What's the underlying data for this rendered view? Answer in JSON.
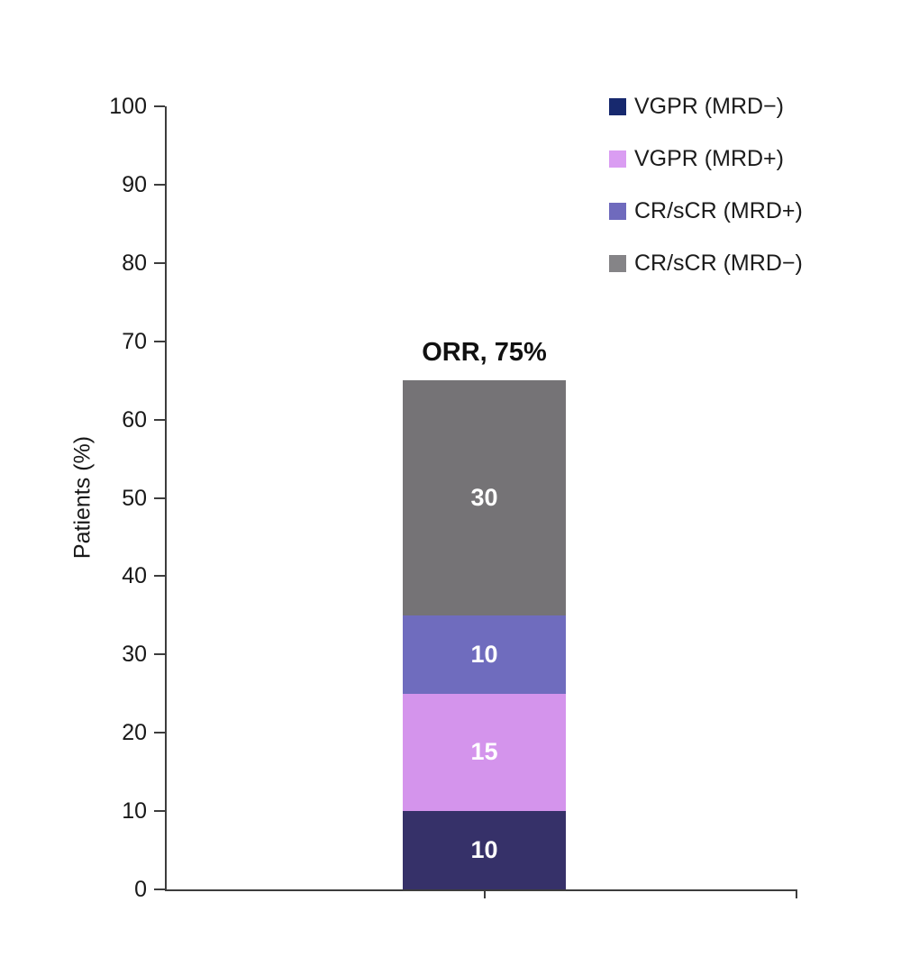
{
  "chart_data": {
    "type": "bar",
    "stacked": true,
    "title": "",
    "ylabel": "Patients (%)",
    "xlabel": "",
    "ylim": [
      0,
      100
    ],
    "yticks": [
      0,
      10,
      20,
      30,
      40,
      50,
      60,
      70,
      80,
      90,
      100
    ],
    "grid": false,
    "categories": [
      ""
    ],
    "series": [
      {
        "name": "VGPR (MRD−)",
        "value": 10,
        "bar_color": "#363169",
        "legend_color": "#17296e",
        "label": "10"
      },
      {
        "name": "VGPR (MRD+)",
        "value": 15,
        "bar_color": "#d494ec",
        "legend_color": "#da9df2",
        "label": "15"
      },
      {
        "name": "CR/sCR (MRD+)",
        "value": 10,
        "bar_color": "#6f6cbe",
        "legend_color": "#6f6abd",
        "label": "10"
      },
      {
        "name": "CR/sCR (MRD−)",
        "value": 30,
        "bar_color": "#757376",
        "legend_color": "#858487",
        "label": "30"
      }
    ],
    "bar_annotation": "ORR, 75%",
    "legend_position": "top-right",
    "legend_order_top_to_bottom": [
      "VGPR (MRD−)",
      "VGPR (MRD+)",
      "CR/sCR (MRD+)",
      "CR/sCR (MRD−)"
    ],
    "axis_color": "#3d3d3d",
    "value_label_color": "#ffffff"
  }
}
